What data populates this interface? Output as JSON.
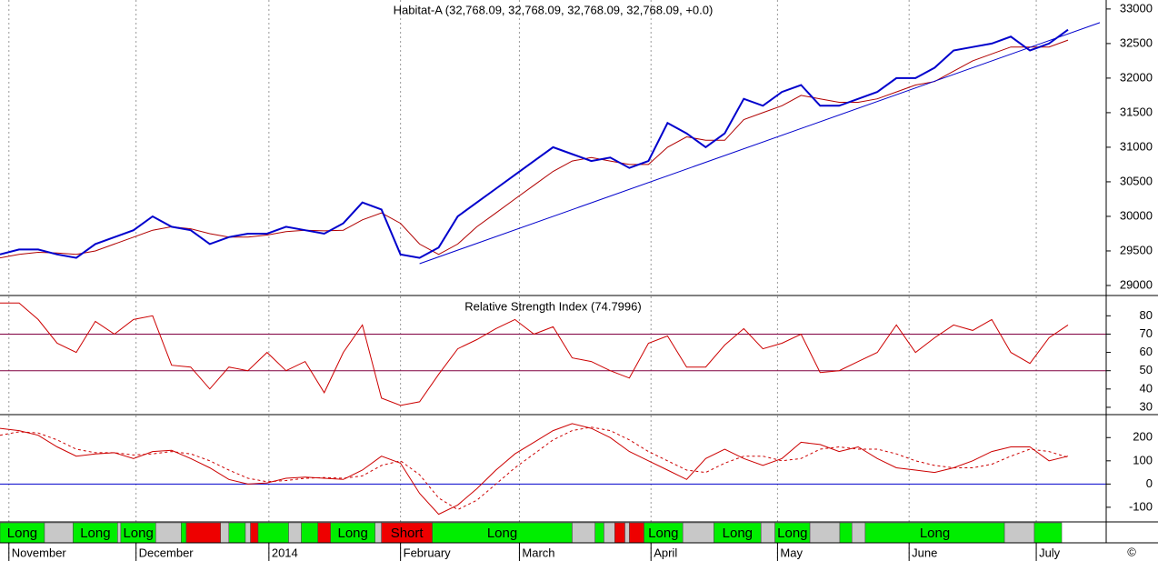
{
  "chart_data": [
    {
      "type": "line",
      "title": "Habitat-A (32,768.09, 32,768.09, 32,768.09, 32,768.09, +0.0)",
      "xlim": [
        0,
        174
      ],
      "ylim": [
        28855,
        33130
      ],
      "yticks": [
        29000,
        29500,
        30000,
        30500,
        31000,
        31500,
        32000,
        32500,
        33000
      ],
      "series": [
        {
          "color": "#b00000",
          "width": 1,
          "x": [
            0,
            3,
            6,
            9,
            12,
            15,
            18,
            21,
            24,
            27,
            30,
            33,
            36,
            39,
            42,
            45,
            48,
            51,
            54,
            57,
            60,
            63,
            66,
            69,
            72,
            75,
            78,
            81,
            84,
            87,
            90,
            93,
            96,
            99,
            102,
            105,
            108,
            111,
            114,
            117,
            120,
            123,
            126,
            129,
            132,
            135,
            138,
            141,
            144,
            147,
            150,
            153,
            156,
            159,
            162,
            165,
            168
          ],
          "values": [
            29400,
            29450,
            29480,
            29470,
            29450,
            29500,
            29600,
            29700,
            29800,
            29850,
            29820,
            29750,
            29700,
            29700,
            29730,
            29780,
            29800,
            29790,
            29800,
            29950,
            30050,
            29900,
            29600,
            29450,
            29600,
            29850,
            30050,
            30250,
            30450,
            30650,
            30800,
            30850,
            30800,
            30750,
            30750,
            31000,
            31150,
            31100,
            31100,
            31400,
            31500,
            31600,
            31750,
            31700,
            31650,
            31650,
            31700,
            31800,
            31900,
            31950,
            32100,
            32250,
            32350,
            32450,
            32450,
            32450,
            32550
          ]
        },
        {
          "color": "#0000cc",
          "width": 2,
          "x": [
            0,
            3,
            6,
            9,
            12,
            15,
            18,
            21,
            24,
            27,
            30,
            33,
            36,
            39,
            42,
            45,
            48,
            51,
            54,
            57,
            60,
            63,
            66,
            69,
            72,
            75,
            78,
            81,
            84,
            87,
            90,
            93,
            96,
            99,
            102,
            105,
            108,
            111,
            114,
            117,
            120,
            123,
            126,
            129,
            132,
            135,
            138,
            141,
            144,
            147,
            150,
            153,
            156,
            159,
            162,
            165,
            168
          ],
          "values": [
            29450,
            29520,
            29520,
            29450,
            29400,
            29600,
            29700,
            29800,
            30000,
            29850,
            29800,
            29600,
            29700,
            29750,
            29750,
            29850,
            29800,
            29750,
            29900,
            30200,
            30100,
            29450,
            29400,
            29550,
            30000,
            30200,
            30400,
            30600,
            30800,
            31000,
            30900,
            30800,
            30850,
            30700,
            30800,
            31350,
            31200,
            31000,
            31200,
            31700,
            31600,
            31800,
            31900,
            31600,
            31600,
            31700,
            31800,
            32000,
            32000,
            32150,
            32400,
            32450,
            32500,
            32600,
            32400,
            32500,
            32700
          ]
        },
        {
          "color": "#0000cc",
          "width": 1,
          "x": [
            66,
            173
          ],
          "values": [
            29316,
            32803
          ]
        }
      ]
    },
    {
      "type": "line",
      "title": "Relative Strength Index (74.7996)",
      "xlim": [
        0,
        174
      ],
      "ylim": [
        26,
        90.6
      ],
      "yticks": [
        30,
        40,
        50,
        60,
        70,
        80
      ],
      "hlines": [
        70,
        50
      ],
      "hline_color": "#800040",
      "series": [
        {
          "color": "#cc0000",
          "width": 1,
          "x": [
            0,
            3,
            6,
            9,
            12,
            15,
            18,
            21,
            24,
            27,
            30,
            33,
            36,
            39,
            42,
            45,
            48,
            51,
            54,
            57,
            60,
            63,
            66,
            69,
            72,
            75,
            78,
            81,
            84,
            87,
            90,
            93,
            96,
            99,
            102,
            105,
            108,
            111,
            114,
            117,
            120,
            123,
            126,
            129,
            132,
            135,
            138,
            141,
            144,
            147,
            150,
            153,
            156,
            159,
            162,
            165,
            168
          ],
          "values": [
            87,
            87,
            78,
            65,
            60,
            77,
            70,
            78,
            80,
            53,
            52,
            40,
            52,
            50,
            60,
            50,
            55,
            38,
            60,
            75,
            35,
            31,
            33,
            48,
            62,
            67,
            73,
            78,
            70,
            74,
            57,
            55,
            50,
            46,
            65,
            69,
            52,
            52,
            64,
            73,
            62,
            65,
            70,
            49,
            50,
            55,
            60,
            75,
            60,
            68,
            75,
            72,
            78,
            60,
            54,
            68,
            75
          ]
        }
      ]
    },
    {
      "type": "line",
      "xlim": [
        0,
        174
      ],
      "ylim": [
        -163,
        295
      ],
      "yticks": [
        -100,
        0,
        100,
        200
      ],
      "hlines": [
        0
      ],
      "hline_color": "#0000cc",
      "series": [
        {
          "color": "#cc0000",
          "width": 1,
          "x": [
            0,
            3,
            6,
            9,
            12,
            15,
            18,
            21,
            24,
            27,
            30,
            33,
            36,
            39,
            42,
            45,
            48,
            51,
            54,
            57,
            60,
            63,
            66,
            69,
            72,
            75,
            78,
            81,
            84,
            87,
            90,
            93,
            96,
            99,
            102,
            105,
            108,
            111,
            114,
            117,
            120,
            123,
            126,
            129,
            132,
            135,
            138,
            141,
            144,
            147,
            150,
            153,
            156,
            159,
            162,
            165,
            168
          ],
          "values": [
            240,
            230,
            210,
            160,
            120,
            130,
            135,
            110,
            140,
            145,
            110,
            70,
            20,
            0,
            5,
            25,
            30,
            25,
            20,
            60,
            120,
            90,
            -40,
            -130,
            -90,
            -20,
            60,
            130,
            180,
            230,
            260,
            240,
            200,
            140,
            100,
            60,
            20,
            110,
            150,
            110,
            80,
            110,
            180,
            170,
            140,
            160,
            110,
            70,
            60,
            50,
            70,
            100,
            140,
            160,
            160,
            100,
            120
          ]
        },
        {
          "color": "#cc0000",
          "width": 1,
          "dash": true,
          "x": [
            0,
            3,
            6,
            9,
            12,
            15,
            18,
            21,
            24,
            27,
            30,
            33,
            36,
            39,
            42,
            45,
            48,
            51,
            54,
            57,
            60,
            63,
            66,
            69,
            72,
            75,
            78,
            81,
            84,
            87,
            90,
            93,
            96,
            99,
            102,
            105,
            108,
            111,
            114,
            117,
            120,
            123,
            126,
            129,
            132,
            135,
            138,
            141,
            144,
            147,
            150,
            153,
            156,
            159,
            162,
            165,
            168
          ],
          "values": [
            210,
            225,
            220,
            190,
            150,
            135,
            135,
            125,
            130,
            140,
            130,
            100,
            60,
            25,
            10,
            15,
            25,
            28,
            25,
            35,
            80,
            100,
            40,
            -60,
            -110,
            -70,
            0,
            70,
            130,
            190,
            230,
            245,
            230,
            190,
            140,
            100,
            60,
            50,
            90,
            120,
            120,
            100,
            110,
            150,
            160,
            150,
            150,
            130,
            100,
            80,
            70,
            70,
            85,
            120,
            150,
            140,
            115
          ]
        }
      ]
    },
    {
      "type": "strip",
      "xlim": [
        0,
        174
      ],
      "xticks": [
        {
          "value": 1.4,
          "label": "November"
        },
        {
          "value": 21.4,
          "label": "December"
        },
        {
          "value": 42.3,
          "label": "2014"
        },
        {
          "value": 63,
          "label": "February"
        },
        {
          "value": 81.7,
          "label": "March"
        },
        {
          "value": 102.4,
          "label": "April"
        },
        {
          "value": 122.3,
          "label": "May"
        },
        {
          "value": 143,
          "label": "June"
        },
        {
          "value": 163,
          "label": "July"
        }
      ],
      "segments": [
        {
          "start": 0,
          "end": 7,
          "color": "#00ee00",
          "label": "Long"
        },
        {
          "start": 7,
          "end": 11.5,
          "color": "#c8c8c8"
        },
        {
          "start": 11.5,
          "end": 18.5,
          "color": "#00ee00",
          "label": "Long"
        },
        {
          "start": 18.5,
          "end": 19,
          "color": "#c8c8c8"
        },
        {
          "start": 19,
          "end": 24.5,
          "color": "#00ee00",
          "label": "Long"
        },
        {
          "start": 24.5,
          "end": 28.5,
          "color": "#c8c8c8"
        },
        {
          "start": 28.5,
          "end": 29.3,
          "color": "#00ee00"
        },
        {
          "start": 29.3,
          "end": 34.7,
          "color": "#ee0000"
        },
        {
          "start": 34.7,
          "end": 36,
          "color": "#c8c8c8"
        },
        {
          "start": 36,
          "end": 38.6,
          "color": "#00ee00"
        },
        {
          "start": 38.6,
          "end": 39.4,
          "color": "#c8c8c8"
        },
        {
          "start": 39.4,
          "end": 40.6,
          "color": "#ee0000"
        },
        {
          "start": 40.6,
          "end": 45.4,
          "color": "#00ee00"
        },
        {
          "start": 45.4,
          "end": 47.4,
          "color": "#c8c8c8"
        },
        {
          "start": 47.4,
          "end": 50,
          "color": "#00ee00"
        },
        {
          "start": 50,
          "end": 52,
          "color": "#ee0000"
        },
        {
          "start": 52,
          "end": 59,
          "color": "#00ee00",
          "label": "Long"
        },
        {
          "start": 59,
          "end": 60,
          "color": "#c8c8c8"
        },
        {
          "start": 60,
          "end": 68,
          "color": "#ee0000",
          "label": "Short"
        },
        {
          "start": 68,
          "end": 90,
          "color": "#00ee00",
          "label": "Long"
        },
        {
          "start": 90,
          "end": 93.6,
          "color": "#c8c8c8"
        },
        {
          "start": 93.6,
          "end": 95,
          "color": "#00ee00"
        },
        {
          "start": 95,
          "end": 96.7,
          "color": "#c8c8c8"
        },
        {
          "start": 96.7,
          "end": 98.3,
          "color": "#ee0000"
        },
        {
          "start": 98.3,
          "end": 99,
          "color": "#c8c8c8"
        },
        {
          "start": 99,
          "end": 101.3,
          "color": "#ee0000"
        },
        {
          "start": 101.3,
          "end": 107.4,
          "color": "#00ee00",
          "label": "Long"
        },
        {
          "start": 107.4,
          "end": 112.3,
          "color": "#c8c8c8"
        },
        {
          "start": 112.3,
          "end": 119.7,
          "color": "#00ee00",
          "label": "Long"
        },
        {
          "start": 119.7,
          "end": 121.9,
          "color": "#c8c8c8"
        },
        {
          "start": 121.9,
          "end": 127.4,
          "color": "#00ee00",
          "label": "Long"
        },
        {
          "start": 127.4,
          "end": 132.1,
          "color": "#c8c8c8"
        },
        {
          "start": 132.1,
          "end": 134,
          "color": "#00ee00"
        },
        {
          "start": 134,
          "end": 136.1,
          "color": "#c8c8c8"
        },
        {
          "start": 136.1,
          "end": 158,
          "color": "#00ee00",
          "label": "Long"
        },
        {
          "start": 158,
          "end": 162.7,
          "color": "#c8c8c8"
        },
        {
          "start": 162.7,
          "end": 167,
          "color": "#00ee00"
        }
      ],
      "copyright": "©"
    }
  ]
}
